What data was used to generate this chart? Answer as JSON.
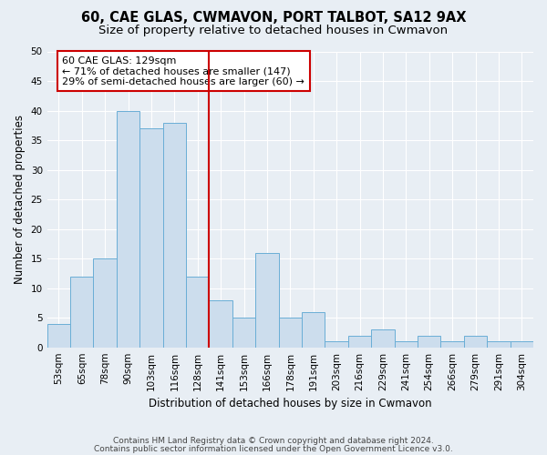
{
  "title": "60, CAE GLAS, CWMAVON, PORT TALBOT, SA12 9AX",
  "subtitle": "Size of property relative to detached houses in Cwmavon",
  "xlabel": "Distribution of detached houses by size in Cwmavon",
  "ylabel": "Number of detached properties",
  "categories": [
    "53sqm",
    "65sqm",
    "78sqm",
    "90sqm",
    "103sqm",
    "116sqm",
    "128sqm",
    "141sqm",
    "153sqm",
    "166sqm",
    "178sqm",
    "191sqm",
    "203sqm",
    "216sqm",
    "229sqm",
    "241sqm",
    "254sqm",
    "266sqm",
    "279sqm",
    "291sqm",
    "304sqm"
  ],
  "values": [
    4,
    12,
    15,
    40,
    37,
    38,
    12,
    8,
    5,
    16,
    5,
    6,
    1,
    2,
    3,
    1,
    2,
    1,
    2,
    1,
    1
  ],
  "bar_color": "#ccdded",
  "bar_edge_color": "#6aaed6",
  "vline_x": 6.5,
  "vline_color": "#cc0000",
  "annotation_line1": "60 CAE GLAS: 129sqm",
  "annotation_line2": "← 71% of detached houses are smaller (147)",
  "annotation_line3": "29% of semi-detached houses are larger (60) →",
  "annotation_box_color": "#cc0000",
  "ylim": [
    0,
    50
  ],
  "yticks": [
    0,
    5,
    10,
    15,
    20,
    25,
    30,
    35,
    40,
    45,
    50
  ],
  "footer_line1": "Contains HM Land Registry data © Crown copyright and database right 2024.",
  "footer_line2": "Contains public sector information licensed under the Open Government Licence v3.0.",
  "background_color": "#e8eef4",
  "plot_background_color": "#e8eef4",
  "grid_color": "#ffffff",
  "title_fontsize": 10.5,
  "subtitle_fontsize": 9.5,
  "axis_label_fontsize": 8.5,
  "tick_fontsize": 7.5,
  "annotation_fontsize": 8,
  "footer_fontsize": 6.5
}
